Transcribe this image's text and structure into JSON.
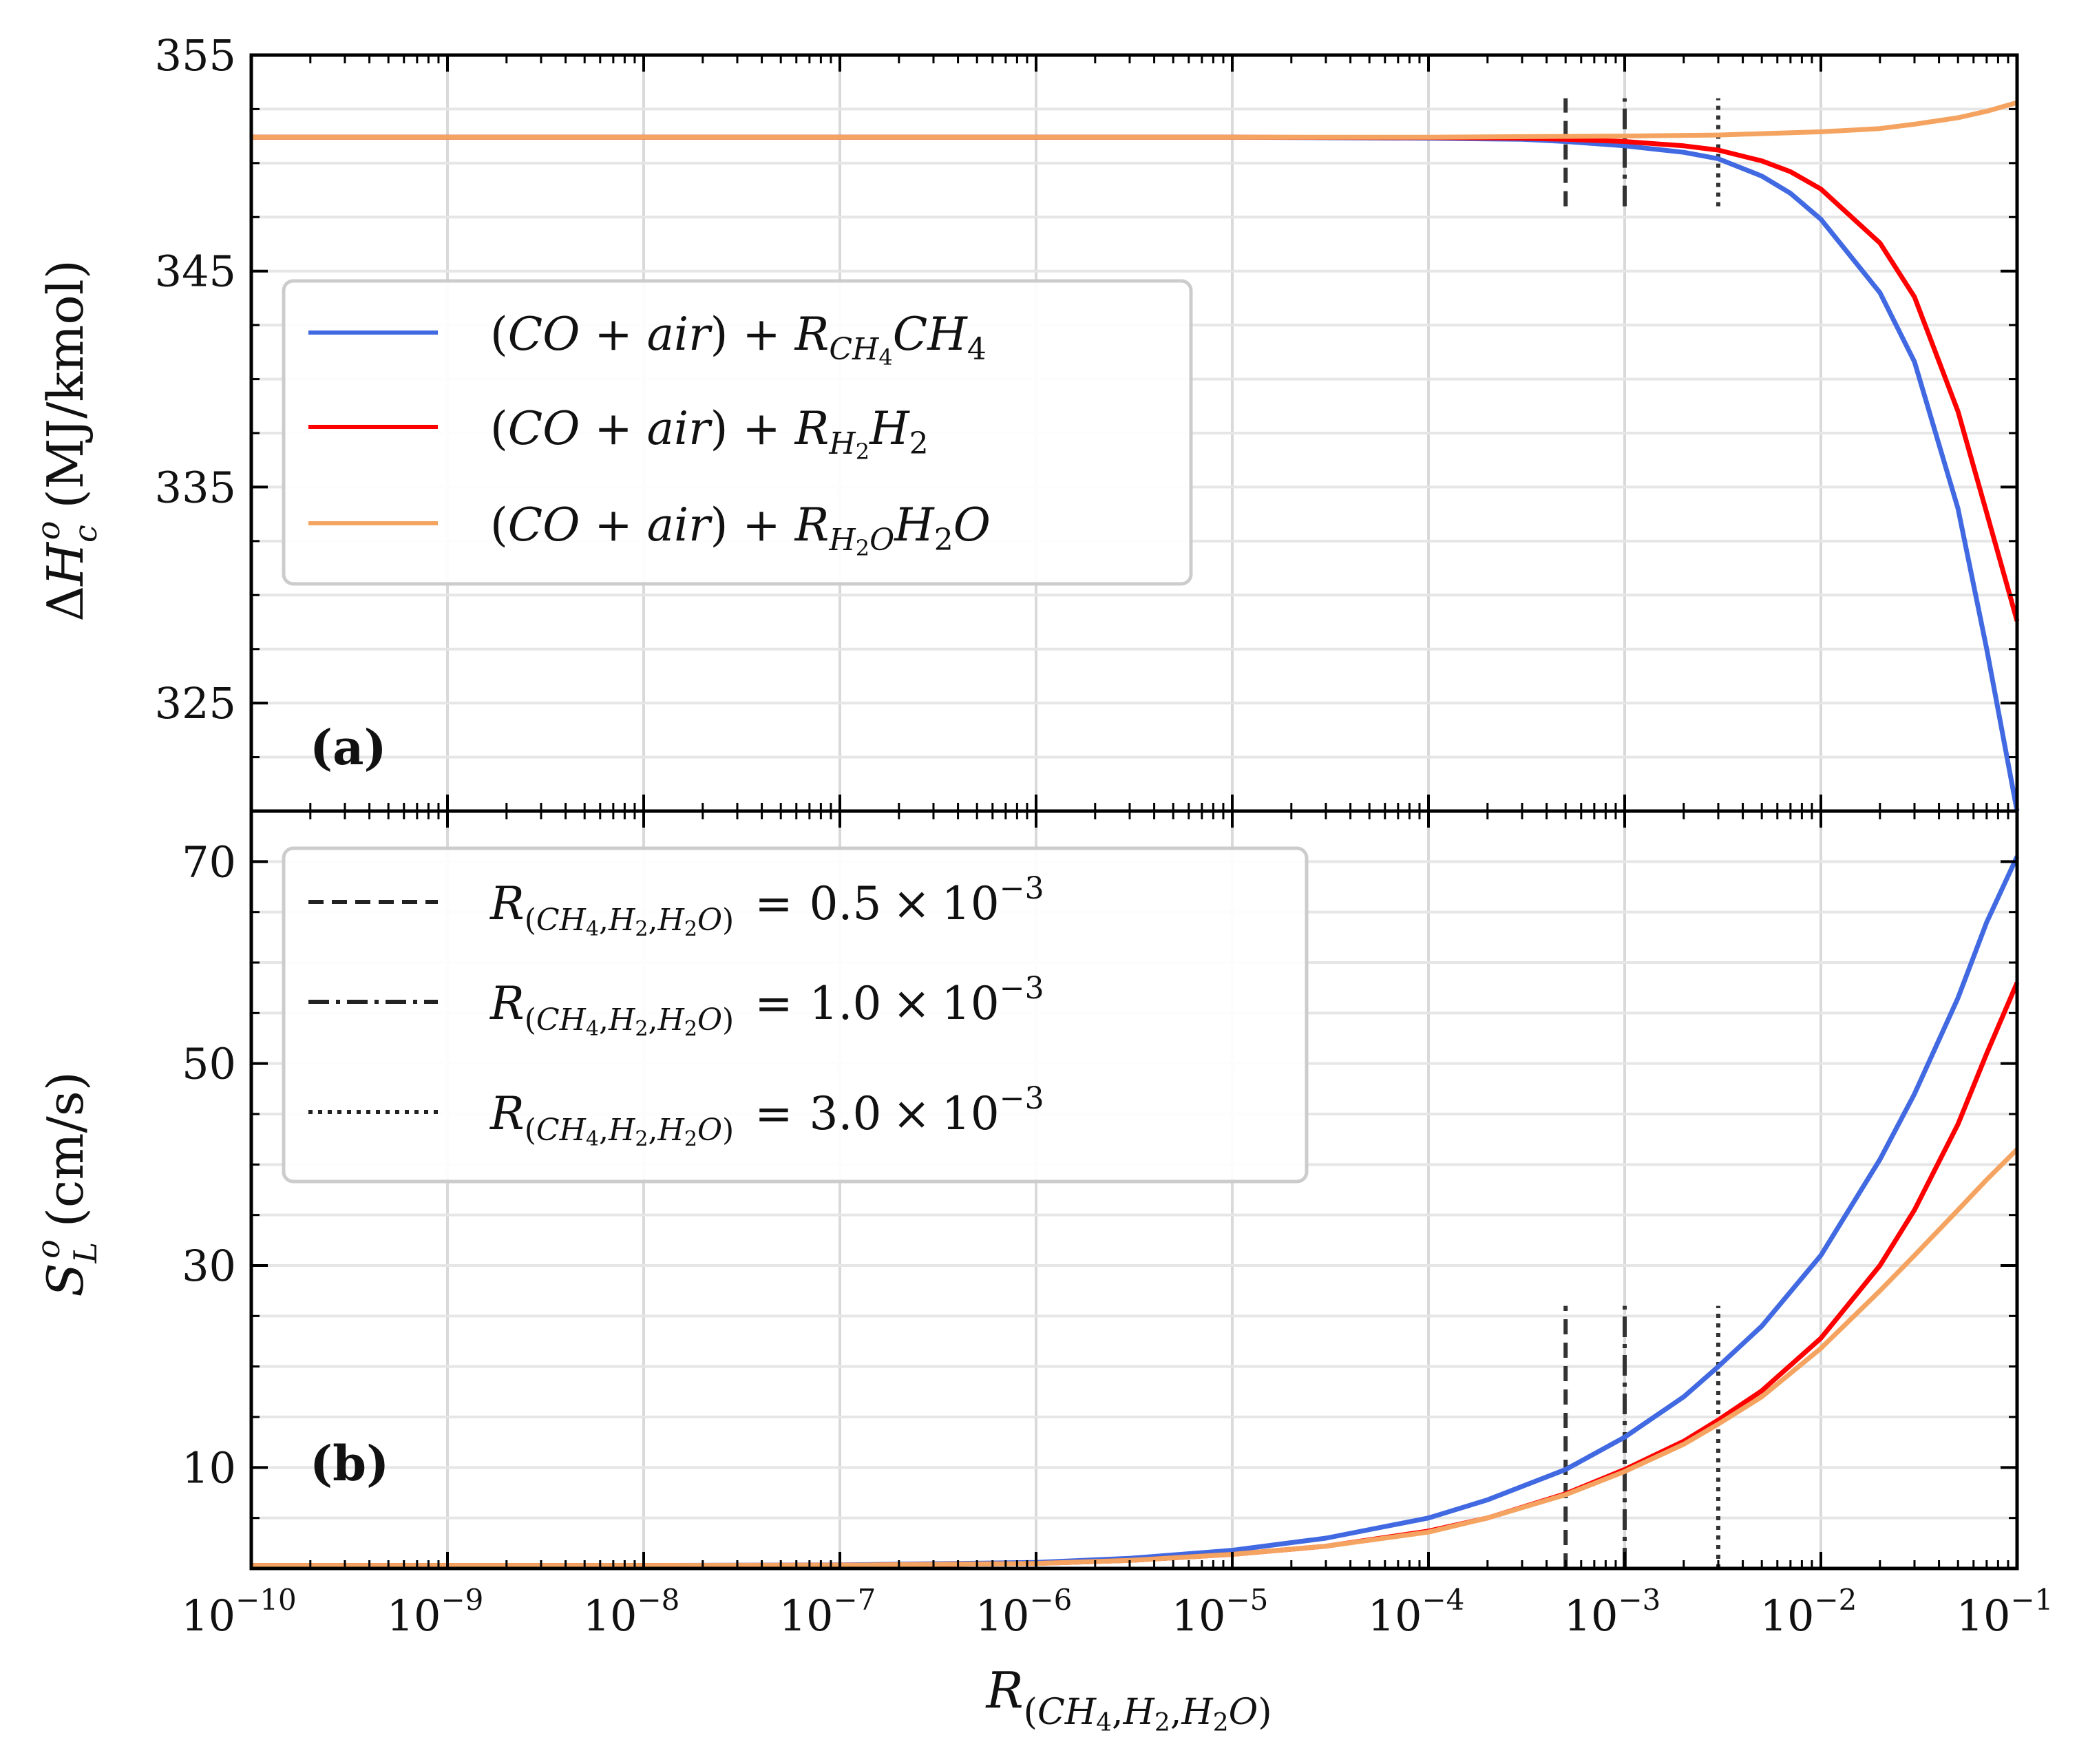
{
  "chart_data": [
    {
      "id": "a",
      "type": "line",
      "panel_label": "(a)",
      "ylabel": "ΔH_c^o (MJ/kmol)",
      "ylabel_parts": {
        "delta": "Δ",
        "symbol": "H",
        "sub": "c",
        "sup": "o",
        "unit": "(MJ/kmol)"
      },
      "xscale": "log",
      "xlim": [
        1e-10,
        0.1
      ],
      "ylim": [
        320,
        355
      ],
      "yticks": [
        325,
        335,
        345,
        355
      ],
      "ytick_labels": [
        "325",
        "335",
        "345",
        "355"
      ],
      "grid": true,
      "legend_position": "middle-left",
      "series": [
        {
          "name": "(CO + air) + R_CH4 CH4",
          "color": "#4169e1",
          "legend": {
            "pre": "(",
            "co": "CO",
            "plus": " + ",
            "air": "air",
            "post": ") + ",
            "R": "R",
            "sub": "CH",
            "subsub": "4",
            "species": "CH",
            "speciessub": "4",
            "tail": ""
          },
          "x": [
            1e-10,
            1e-09,
            1e-08,
            1e-07,
            1e-06,
            1e-05,
            0.0001,
            0.0003,
            0.0005,
            0.001,
            0.002,
            0.003,
            0.005,
            0.007,
            0.01,
            0.02,
            0.03,
            0.05,
            0.07,
            0.1
          ],
          "y": [
            351.2,
            351.2,
            351.2,
            351.2,
            351.2,
            351.2,
            351.15,
            351.1,
            351.0,
            350.8,
            350.5,
            350.2,
            349.4,
            348.6,
            347.4,
            344.0,
            340.8,
            334.0,
            327.5,
            320.0
          ]
        },
        {
          "name": "(CO + air) + R_H2 H2",
          "color": "#ff0000",
          "legend": {
            "pre": "(",
            "co": "CO",
            "plus": " + ",
            "air": "air",
            "post": ") + ",
            "R": "R",
            "sub": "H",
            "subsub": "2",
            "species": "H",
            "speciessub": "2",
            "tail": ""
          },
          "x": [
            1e-10,
            1e-09,
            1e-08,
            1e-07,
            1e-06,
            1e-05,
            0.0001,
            0.0003,
            0.0005,
            0.001,
            0.002,
            0.003,
            0.005,
            0.007,
            0.01,
            0.02,
            0.03,
            0.05,
            0.07,
            0.1
          ],
          "y": [
            351.2,
            351.2,
            351.2,
            351.2,
            351.2,
            351.2,
            351.18,
            351.15,
            351.1,
            351.0,
            350.8,
            350.6,
            350.1,
            349.6,
            348.8,
            346.3,
            343.8,
            338.5,
            333.8,
            328.8
          ]
        },
        {
          "name": "(CO + air) + R_H2O H2O",
          "color": "#f4a460",
          "legend": {
            "pre": "(",
            "co": "CO",
            "plus": " + ",
            "air": "air",
            "post": ") + ",
            "R": "R",
            "sub": "H",
            "subsub": "2",
            "subtail": "O",
            "species": "H",
            "speciessub": "2",
            "tail": "O"
          },
          "x": [
            1e-10,
            1e-09,
            1e-08,
            1e-07,
            1e-06,
            1e-05,
            0.0001,
            0.001,
            0.003,
            0.01,
            0.02,
            0.03,
            0.05,
            0.07,
            0.1
          ],
          "y": [
            351.2,
            351.2,
            351.2,
            351.2,
            351.2,
            351.2,
            351.2,
            351.25,
            351.3,
            351.45,
            351.6,
            351.8,
            352.1,
            352.4,
            352.8
          ]
        }
      ],
      "vlines": [
        {
          "x": 0.0005,
          "style": "dashed",
          "ymin": 348,
          "ymax": 353
        },
        {
          "x": 0.001,
          "style": "dashdot",
          "ymin": 348,
          "ymax": 353
        },
        {
          "x": 0.003,
          "style": "dotted",
          "ymin": 348,
          "ymax": 353
        }
      ]
    },
    {
      "id": "b",
      "type": "line",
      "panel_label": "(b)",
      "ylabel": "S_L^o (cm/s)",
      "ylabel_parts": {
        "symbol": "S",
        "sub": "L",
        "sup": "o",
        "unit": "(cm/s)"
      },
      "xscale": "log",
      "xlim": [
        1e-10,
        0.1
      ],
      "ylim": [
        0,
        75
      ],
      "yticks": [
        10,
        30,
        50,
        70
      ],
      "ytick_labels": [
        "10",
        "30",
        "50",
        "70"
      ],
      "xlabel": "R_(CH4,H2,H2O)",
      "xtick_exponents": [
        "−10",
        "−9",
        "−8",
        "−7",
        "−6",
        "−5",
        "−4",
        "−3",
        "−2",
        "−1"
      ],
      "xtick_base": "10",
      "grid": true,
      "legend_position": "upper-left",
      "series": [
        {
          "name": "(CO + air) + R_CH4 CH4",
          "color": "#4169e1",
          "x": [
            1e-10,
            1e-08,
            1e-07,
            1e-06,
            3e-06,
            1e-05,
            3e-05,
            0.0001,
            0.0002,
            0.0005,
            0.001,
            0.002,
            0.003,
            0.005,
            0.01,
            0.02,
            0.03,
            0.05,
            0.07,
            0.1
          ],
          "y": [
            0.3,
            0.3,
            0.35,
            0.6,
            1.0,
            1.8,
            3.0,
            5.0,
            6.8,
            9.8,
            13.0,
            17.0,
            20.0,
            24.0,
            31.0,
            40.5,
            47.0,
            56.5,
            64.0,
            70.5
          ]
        },
        {
          "name": "(CO + air) + R_H2 H2",
          "color": "#ff0000",
          "x": [
            1e-10,
            1e-08,
            1e-07,
            1e-06,
            3e-06,
            1e-05,
            3e-05,
            0.0001,
            0.0002,
            0.0005,
            0.001,
            0.002,
            0.003,
            0.005,
            0.01,
            0.02,
            0.03,
            0.05,
            0.07,
            0.1
          ],
          "y": [
            0.3,
            0.3,
            0.32,
            0.5,
            0.8,
            1.4,
            2.2,
            3.7,
            5.0,
            7.4,
            9.8,
            12.6,
            14.7,
            17.6,
            22.8,
            30.0,
            35.5,
            44.0,
            51.0,
            58.0
          ]
        },
        {
          "name": "(CO + air) + R_H2O H2O",
          "color": "#f4a460",
          "x": [
            1e-10,
            1e-08,
            1e-07,
            1e-06,
            3e-06,
            1e-05,
            3e-05,
            0.0001,
            0.0002,
            0.0005,
            0.001,
            0.002,
            0.003,
            0.005,
            0.01,
            0.02,
            0.03,
            0.05,
            0.07,
            0.1
          ],
          "y": [
            0.3,
            0.3,
            0.32,
            0.5,
            0.8,
            1.4,
            2.2,
            3.6,
            5.0,
            7.3,
            9.6,
            12.3,
            14.3,
            17.0,
            21.8,
            27.5,
            31.0,
            35.5,
            38.5,
            41.5
          ]
        }
      ],
      "vlines": [
        {
          "x": 0.0005,
          "style": "dashed",
          "ymin": 0,
          "ymax": 26,
          "label": "R_(CH4,H2,H2O) = 0.5 × 10^−3",
          "coef": "0.5"
        },
        {
          "x": 0.001,
          "style": "dashdot",
          "ymin": 0,
          "ymax": 26,
          "label": "R_(CH4,H2,H2O) = 1.0 × 10^−3",
          "coef": "1.0"
        },
        {
          "x": 0.003,
          "style": "dotted",
          "ymin": 0,
          "ymax": 26,
          "label": "R_(CH4,H2,H2O) = 3.0 × 10^−3",
          "coef": "3.0"
        }
      ]
    }
  ],
  "symbols": {
    "R": "R",
    "paren_open": "(",
    "paren_close": ")",
    "comma": ",",
    "CH": "CH",
    "H": "H",
    "O": "O",
    "four": "4",
    "two": "2",
    "equals": "=",
    "times": "×",
    "ten": "10",
    "minus3": "−3"
  }
}
